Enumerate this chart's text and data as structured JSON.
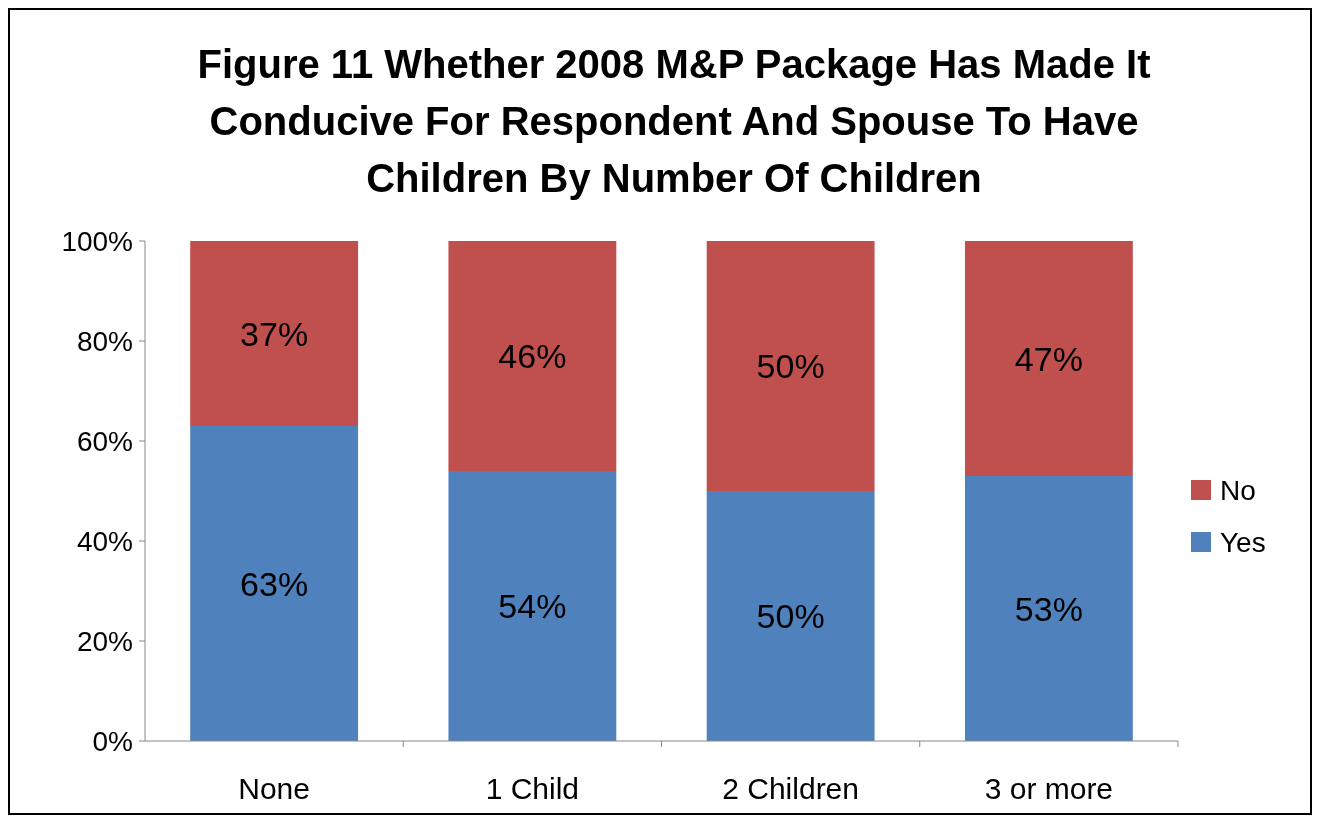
{
  "chart_data": {
    "type": "bar",
    "title": "Figure 11 Whether 2008 M&P Package Has Made It Conducive For Respondent And Spouse To Have Children By Number Of Children",
    "categories": [
      "None",
      "1 Child",
      "2 Children",
      "3 or more"
    ],
    "stacked": true,
    "series": [
      {
        "name": "Yes",
        "color": "#4f81bd",
        "values": [
          63,
          54,
          50,
          53
        ],
        "value_labels": [
          "63%",
          "54%",
          "50%",
          "53%"
        ]
      },
      {
        "name": "No",
        "color": "#c0504d",
        "values": [
          37,
          46,
          50,
          47
        ],
        "value_labels": [
          "37%",
          "46%",
          "50%",
          "47%"
        ]
      }
    ],
    "ylim": [
      0,
      100
    ],
    "yticks": [
      {
        "value": 0,
        "label": "0%"
      },
      {
        "value": 20,
        "label": "20%"
      },
      {
        "value": 40,
        "label": "40%"
      },
      {
        "value": 60,
        "label": "60%"
      },
      {
        "value": 80,
        "label": "80%"
      },
      {
        "value": 100,
        "label": "100%"
      }
    ],
    "grid": false,
    "legend": "right"
  }
}
